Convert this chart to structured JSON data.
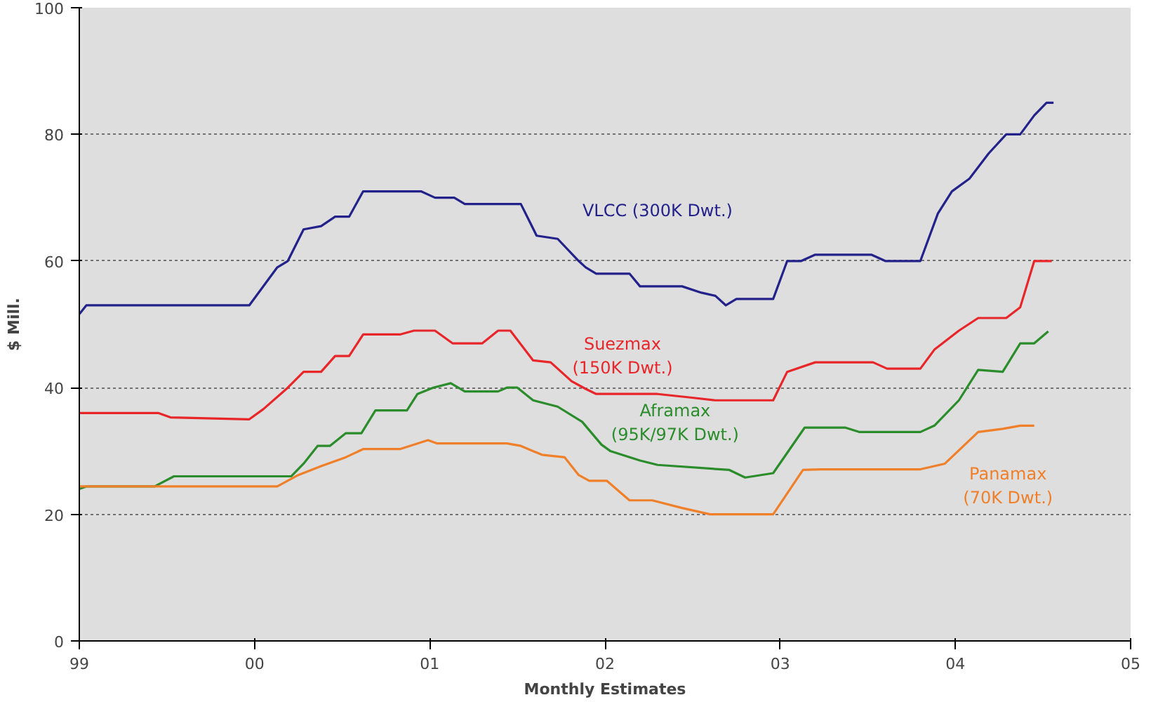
{
  "chart_data": {
    "type": "line",
    "xlabel": "Monthly Estimates",
    "ylabel": "$ Mill.",
    "xlim": [
      1999,
      2005
    ],
    "xticks": [
      {
        "value": 1999,
        "label": "99"
      },
      {
        "value": 2000,
        "label": "00"
      },
      {
        "value": 2001,
        "label": "01"
      },
      {
        "value": 2002,
        "label": "02"
      },
      {
        "value": 2003,
        "label": "03"
      },
      {
        "value": 2004,
        "label": "04"
      },
      {
        "value": 2005,
        "label": "05"
      }
    ],
    "ylim": [
      0,
      100
    ],
    "yticks": [
      0,
      20,
      40,
      60,
      80,
      100
    ],
    "grid": "y",
    "line_style": "solid",
    "marker": "none",
    "series": [
      {
        "name": "VLCC (300K Dwt.)",
        "color": "#22228a",
        "x": [
          1999.0,
          1999.04,
          1999.97,
          2000.13,
          2000.19,
          2000.28,
          2000.38,
          2000.46,
          2000.54,
          2000.62,
          2000.95,
          2001.03,
          2001.14,
          2001.2,
          2001.52,
          2001.61,
          2001.73,
          2001.85,
          2001.89,
          2001.95,
          2002.14,
          2002.2,
          2002.44,
          2002.55,
          2002.63,
          2002.69,
          2002.75,
          2002.96,
          2003.04,
          2003.12,
          2003.2,
          2003.52,
          2003.6,
          2003.8,
          2003.9,
          2003.98,
          2004.08,
          2004.19,
          2004.29,
          2004.37,
          2004.45,
          2004.52,
          2004.56
        ],
        "values": [
          51.6,
          53,
          53,
          59,
          60,
          65,
          65.5,
          67,
          67,
          71,
          71,
          70,
          70,
          69,
          69,
          64,
          63.5,
          60,
          59,
          58,
          58,
          56,
          56,
          55,
          54.5,
          53,
          54,
          54,
          60,
          60,
          61,
          61,
          60,
          60,
          67.5,
          71,
          73,
          77,
          80,
          80,
          83,
          85,
          85
        ]
      },
      {
        "name": "Suezmax (150K Dwt.)",
        "color": "#e8262a",
        "x": [
          1999.0,
          1999.45,
          1999.52,
          1999.97,
          2000.05,
          2000.19,
          2000.28,
          2000.38,
          2000.46,
          2000.54,
          2000.62,
          2000.83,
          2000.91,
          2001.03,
          2001.13,
          2001.3,
          2001.39,
          2001.46,
          2001.59,
          2001.69,
          2001.81,
          2001.89,
          2001.95,
          2002.3,
          2002.47,
          2002.63,
          2002.96,
          2003.04,
          2003.2,
          2003.53,
          2003.61,
          2003.8,
          2003.88,
          2004.02,
          2004.13,
          2004.29,
          2004.37,
          2004.45,
          2004.55
        ],
        "values": [
          36,
          36,
          35.3,
          35,
          36.6,
          40,
          42.5,
          42.5,
          45,
          45,
          48.4,
          48.4,
          49,
          49,
          47,
          47,
          49,
          49,
          44.3,
          44,
          41,
          39.8,
          39,
          39,
          38.5,
          38,
          38,
          42.5,
          44,
          44,
          43,
          43,
          46,
          49,
          51,
          51,
          52.7,
          60,
          60
        ]
      },
      {
        "name": "Aframax (95K/97K Dwt.)",
        "color": "#2a8c2a",
        "x": [
          1999.0,
          1999.04,
          1999.43,
          1999.54,
          2000.21,
          2000.28,
          2000.36,
          2000.43,
          2000.52,
          2000.61,
          2000.69,
          2000.87,
          2000.93,
          2001.02,
          2001.12,
          2001.2,
          2001.39,
          2001.44,
          2001.5,
          2001.59,
          2001.73,
          2001.87,
          2001.98,
          2002.03,
          2002.2,
          2002.3,
          2002.71,
          2002.8,
          2002.96,
          2003.14,
          2003.37,
          2003.45,
          2003.8,
          2003.88,
          2004.02,
          2004.13,
          2004.27,
          2004.37,
          2004.45,
          2004.53
        ],
        "values": [
          24,
          24.4,
          24.4,
          26,
          26,
          28,
          30.8,
          30.8,
          32.8,
          32.8,
          36.4,
          36.4,
          39,
          40,
          40.7,
          39.4,
          39.4,
          40,
          40,
          38,
          37,
          34.6,
          31,
          30,
          28.5,
          27.8,
          27,
          25.8,
          26.5,
          33.7,
          33.7,
          33,
          33,
          34,
          38,
          42.8,
          42.5,
          47,
          47,
          48.9
        ]
      },
      {
        "name": "Panamax (70K Dwt.)",
        "color": "#f07f2a",
        "x": [
          1999.0,
          2000.13,
          2000.25,
          2000.38,
          2000.52,
          2000.62,
          2000.83,
          2000.99,
          2001.04,
          2001.44,
          2001.52,
          2001.64,
          2001.77,
          2001.85,
          2001.91,
          2002.01,
          2002.14,
          2002.27,
          2002.44,
          2002.6,
          2002.96,
          2003.13,
          2003.23,
          2003.8,
          2003.94,
          2004.13,
          2004.27,
          2004.37,
          2004.45
        ],
        "values": [
          24.4,
          24.4,
          26.2,
          27.6,
          29,
          30.3,
          30.3,
          31.7,
          31.2,
          31.2,
          30.8,
          29.4,
          29,
          26.2,
          25.3,
          25.3,
          22.2,
          22.2,
          21,
          20,
          20,
          27,
          27.1,
          27.1,
          28,
          33,
          33.5,
          34,
          34
        ]
      }
    ]
  }
}
